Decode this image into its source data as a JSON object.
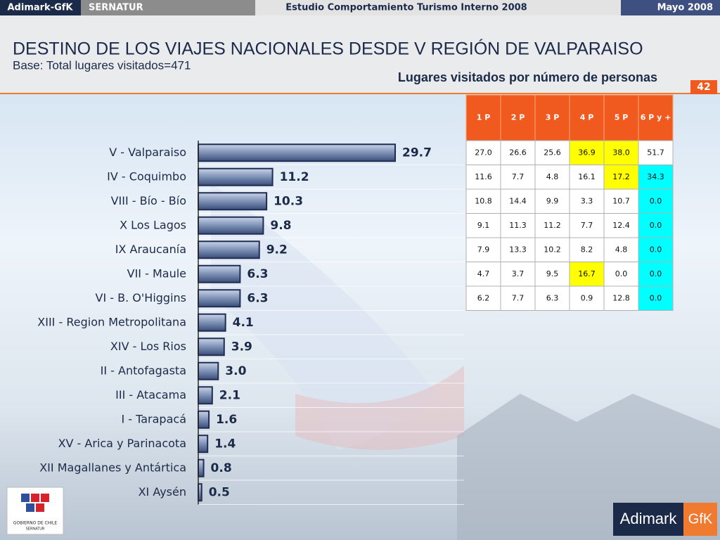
{
  "header": {
    "brand": "Adimark-GfK",
    "client": "SERNATUR",
    "study": "Estudio Comportamiento Turismo Interno 2008",
    "date": "Mayo 2008"
  },
  "page_number": "42",
  "chart_data": {
    "type": "bar",
    "orientation": "horizontal",
    "title": "DESTINO DE LOS VIAJES NACIONALES DESDE V REGIÓN DE VALPARAISO",
    "subtitle": "Base: Total lugares visitados=471",
    "categories": [
      "V - Valparaiso",
      "IV - Coquimbo",
      "VIII - Bío - Bío",
      "X Los Lagos",
      "IX Araucanía",
      "VII - Maule",
      "VI - B. O'Higgins",
      "XIII - Region Metropolitana",
      "XIV - Los Rios",
      "II - Antofagasta",
      "III - Atacama",
      "I - Tarapacá",
      "XV - Arica y Parinacota",
      "XII Magallanes y Antártica",
      "XI Aysén"
    ],
    "values": [
      29.7,
      11.2,
      10.3,
      9.8,
      9.2,
      6.3,
      6.3,
      4.1,
      3.9,
      3.0,
      2.1,
      1.6,
      1.4,
      0.8,
      0.5
    ],
    "value_labels": [
      "29.7",
      "11.2",
      "10.3",
      "9.8",
      "9.2",
      "6.3",
      "6.3",
      "4.1",
      "3.9",
      "3.0",
      "2.1",
      "1.6",
      "1.4",
      "0.8",
      "0.5"
    ],
    "color": "#7d91b6"
  },
  "table": {
    "caption": "Lugares visitados por número de personas",
    "columns": [
      "1 P",
      "2 P",
      "3 P",
      "4 P",
      "5 P",
      "6 P y +"
    ],
    "rows": [
      [
        "27.0",
        "26.6",
        "25.6",
        "36.9",
        "38.0",
        "51.7"
      ],
      [
        "11.6",
        "7.7",
        "4.8",
        "16.1",
        "17.2",
        "34.3"
      ],
      [
        "10.8",
        "14.4",
        "9.9",
        "3.3",
        "10.7",
        "0.0"
      ],
      [
        "9.1",
        "11.3",
        "11.2",
        "7.7",
        "12.4",
        "0.0"
      ],
      [
        "7.9",
        "13.3",
        "10.2",
        "8.2",
        "4.8",
        "0.0"
      ],
      [
        "4.7",
        "3.7",
        "9.5",
        "16.7",
        "0.0",
        "0.0"
      ],
      [
        "6.2",
        "7.7",
        "6.3",
        "0.9",
        "12.8",
        "0.0"
      ]
    ],
    "cell_colors": [
      [
        null,
        null,
        null,
        "#ffff00",
        "#ffff00",
        null
      ],
      [
        null,
        null,
        null,
        null,
        "#ffff00",
        "#00ffff"
      ],
      [
        null,
        null,
        null,
        null,
        null,
        "#00ffff"
      ],
      [
        null,
        null,
        null,
        null,
        null,
        "#00ffff"
      ],
      [
        null,
        null,
        null,
        null,
        null,
        "#00ffff"
      ],
      [
        null,
        null,
        null,
        "#ffff00",
        null,
        "#00ffff"
      ],
      [
        null,
        null,
        null,
        null,
        null,
        "#00ffff"
      ]
    ]
  },
  "logos": {
    "gobierno": "GOBIERNO DE CHILE",
    "sernatur": "SERNATUR",
    "adimark": "Adimark",
    "gfk": "GfK"
  }
}
